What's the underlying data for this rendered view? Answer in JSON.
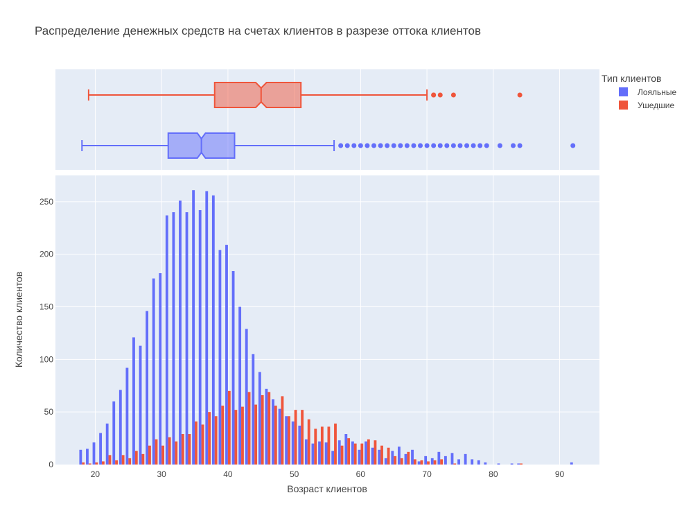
{
  "chart_data": {
    "type": "bar",
    "title": "Распределение денежных средств на счетах клиентов в разрезе оттока клиентов",
    "xlabel": "Возраст клиентов",
    "ylabel": "Количество клиентов",
    "xlim": [
      14,
      96
    ],
    "ylim": [
      0,
      275
    ],
    "x_ticks": [
      20,
      30,
      40,
      50,
      60,
      70,
      80,
      90
    ],
    "y_ticks": [
      0,
      50,
      100,
      150,
      200,
      250
    ],
    "legend_title": "Тип клиентов",
    "legend_position": "top-right",
    "grid": true,
    "series": [
      {
        "name": "Лояльные",
        "color": "#636efa",
        "x": [
          18,
          19,
          20,
          21,
          22,
          23,
          24,
          25,
          26,
          27,
          28,
          29,
          30,
          31,
          32,
          33,
          34,
          35,
          36,
          37,
          38,
          39,
          40,
          41,
          42,
          43,
          44,
          45,
          46,
          47,
          48,
          49,
          50,
          51,
          52,
          53,
          54,
          55,
          56,
          57,
          58,
          59,
          60,
          61,
          62,
          63,
          64,
          65,
          66,
          67,
          68,
          69,
          70,
          71,
          72,
          73,
          74,
          75,
          76,
          77,
          78,
          79,
          81,
          83,
          84,
          92
        ],
        "values": [
          14,
          15,
          21,
          30,
          39,
          60,
          71,
          92,
          121,
          113,
          146,
          177,
          182,
          237,
          240,
          251,
          240,
          261,
          242,
          260,
          256,
          204,
          209,
          184,
          150,
          129,
          105,
          88,
          72,
          62,
          53,
          46,
          41,
          37,
          24,
          20,
          22,
          21,
          13,
          23,
          29,
          22,
          14,
          22,
          16,
          14,
          6,
          13,
          17,
          10,
          14,
          3,
          8,
          6,
          12,
          8,
          11,
          5,
          10,
          5,
          4,
          2,
          1,
          1,
          1,
          2
        ]
      },
      {
        "name": "Ушедшие",
        "color": "#ef553b",
        "x": [
          18,
          19,
          20,
          21,
          22,
          23,
          24,
          25,
          26,
          27,
          28,
          29,
          30,
          31,
          32,
          33,
          34,
          35,
          36,
          37,
          38,
          39,
          40,
          41,
          42,
          43,
          44,
          45,
          46,
          47,
          48,
          49,
          50,
          51,
          52,
          53,
          54,
          55,
          56,
          57,
          58,
          59,
          60,
          61,
          62,
          63,
          64,
          65,
          66,
          67,
          68,
          69,
          70,
          71,
          72,
          74,
          84
        ],
        "values": [
          2,
          1,
          2,
          3,
          9,
          4,
          9,
          6,
          13,
          10,
          18,
          24,
          18,
          26,
          22,
          29,
          29,
          41,
          38,
          50,
          46,
          56,
          70,
          52,
          55,
          69,
          57,
          66,
          69,
          56,
          65,
          46,
          52,
          52,
          43,
          34,
          36,
          36,
          39,
          18,
          25,
          20,
          20,
          24,
          23,
          18,
          16,
          8,
          6,
          12,
          5,
          4,
          3,
          4,
          5,
          1,
          1
        ]
      }
    ],
    "boxplots": [
      {
        "name": "Ушедшие",
        "color": "#ef553b",
        "min": 19,
        "q1": 38,
        "median": 45,
        "q3": 51,
        "max": 70,
        "notch_low": 44.5,
        "notch_high": 45.5,
        "outliers": [
          71,
          71,
          72,
          74,
          84
        ]
      },
      {
        "name": "Лояльные",
        "color": "#636efa",
        "min": 18,
        "q1": 31,
        "median": 36,
        "q3": 41,
        "max": 56,
        "notch_low": 35.7,
        "notch_high": 36.3,
        "outliers": [
          57,
          58,
          59,
          60,
          61,
          62,
          63,
          64,
          65,
          66,
          67,
          68,
          69,
          70,
          71,
          72,
          73,
          74,
          75,
          76,
          77,
          78,
          79,
          81,
          83,
          84,
          92
        ]
      }
    ]
  }
}
